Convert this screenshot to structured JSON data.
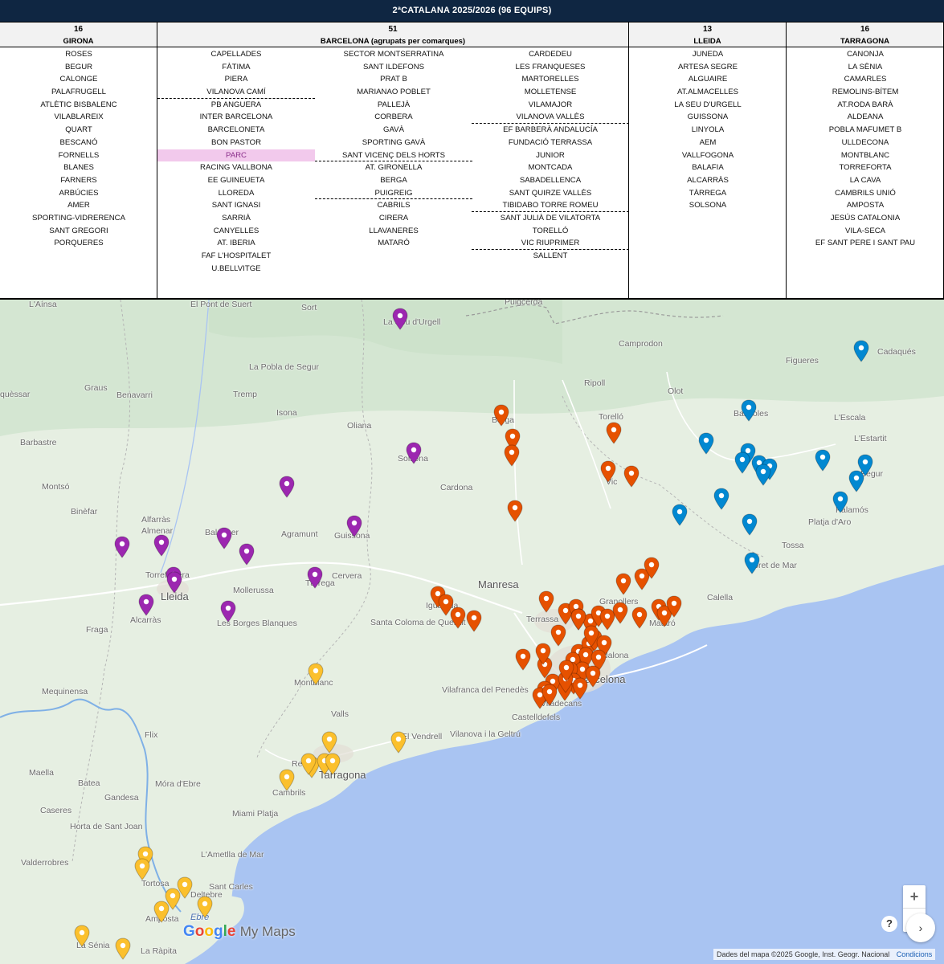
{
  "title": "2ªCATALANA 2025/2026 (96 EQUIPS)",
  "groups": [
    {
      "count": "16",
      "name": "GIRONA",
      "columns": [
        [
          "ROSES",
          "BEGUR",
          "CALONGE",
          "PALAFRUGELL",
          "ATLÈTIC BISBALENC",
          "VILABLAREIX",
          "QUART",
          "BESCANÓ",
          "FORNELLS",
          "BLANES",
          "FARNERS",
          "ARBÚCIES",
          "AMER",
          "SPORTING-VIDRERENCA",
          "SANT GREGORI",
          "PORQUERES"
        ]
      ]
    },
    {
      "count": "51",
      "name": "BARCELONA (agrupats per comarques)",
      "columns": [
        [
          "CAPELLADES",
          "FÀTIMA",
          "PIERA",
          "VILANOVA CAMÍ",
          "PB ANGUERA",
          "INTER BARCELONA",
          "BARCELONETA",
          "BON PASTOR",
          "PARC",
          "RACING VALLBONA",
          "EE GUINEUETA",
          "LLOREDA",
          "SANT IGNASI",
          "SARRIÀ",
          "CANYELLES",
          "AT. IBERIA",
          "FAF L'HOSPITALET",
          "U.BELLVITGE"
        ],
        [
          "SECTOR MONTSERRATINA",
          "SANT ILDEFONS",
          "PRAT B",
          "MARIANAO POBLET",
          "PALLEJÀ",
          "CORBERA",
          "GAVÀ",
          "SPORTING GAVÀ",
          "SANT VICENÇ DELS HORTS",
          "AT. GIRONELLA",
          "BERGA",
          "PUIGREIG",
          "CABRILS",
          "CIRERA",
          "LLAVANERES",
          "MATARÓ"
        ],
        [
          "CARDEDEU",
          "LES FRANQUESES",
          "MARTORELLES",
          "MOLLETENSE",
          "VILAMAJOR",
          "VILANOVA VALLÈS",
          "EF BARBERÀ ANDALUCÍA",
          "FUNDACIÓ TERRASSA",
          "JUNIOR",
          "MONTCADA",
          "SABADELLENCA",
          "SANT QUIRZE VALLÈS",
          "TIBIDABO TORRE ROMEU",
          "SANT JULIÀ DE VILATORTA",
          "TORELLÓ",
          "VIC RIUPRIMER",
          "SALLENT"
        ]
      ]
    },
    {
      "count": "13",
      "name": "LLEIDA",
      "columns": [
        [
          "JUNEDA",
          "ARTESA SEGRE",
          "ALGUAIRE",
          "AT.ALMACELLES",
          "LA SEU D'URGELL",
          "GUISSONA",
          "LINYOLA",
          "AEM",
          "VALLFOGONA",
          "BALAFIA",
          "ALCARRÀS",
          "TÀRREGA",
          "SOLSONA"
        ]
      ]
    },
    {
      "count": "16",
      "name": "TARRAGONA",
      "columns": [
        [
          "CANONJA",
          "LA SÈNIA",
          "CAMARLES",
          "REMOLINS-BÍTEM",
          "AT.RODA BARÀ",
          "ALDEANA",
          "POBLA MAFUMET B",
          "ULLDECONA",
          "MONTBLANC",
          "TORREFORTA",
          "LA CAVA",
          "CAMBRILS UNIÓ",
          "AMPOSTA",
          "JESÚS CATALONIA",
          "VILA-SECA",
          "EF SANT PERE I SANT PAU"
        ]
      ]
    }
  ],
  "highlighted_team": "PARC",
  "map": {
    "places": [
      "L'Aínsa",
      "El Pont de Suert",
      "Sort",
      "La Seu d'Urgell",
      "Puigcerdà",
      "Camprodon",
      "Cadaqués",
      "Figueres",
      "La Pobla de Segur",
      "Tremp",
      "Isona",
      "Graus",
      "Benavarri",
      "Oliana",
      "Solsona",
      "Berga",
      "Ripoll",
      "Olot",
      "Banyoles",
      "L'Escala",
      "L'Estartit",
      "Begur",
      "Torelló",
      "Vic",
      "Cardona",
      "Barbastre",
      "Montsó",
      "Binèfar",
      "Alfarràs",
      "Almenar",
      "Balaguer",
      "Agramunt",
      "Guissona",
      "Torrefarrera",
      "Lleida",
      "Mollerussa",
      "Tàrrega",
      "Cervera",
      "Manresa",
      "Igualada",
      "Alcarràs",
      "Fraga",
      "Les Borges Blanques",
      "Santa Coloma de Queralt",
      "Terrassa",
      "Granollers",
      "Mataró",
      "Calella",
      "Lloret de Mar",
      "Platja d'Aro",
      "Palamós",
      "Barcelona",
      "Badalona",
      "Viladecans",
      "Castelldefels",
      "Vilafranca del Penedès",
      "Vilanova i la Geltrú",
      "El Vendrell",
      "Montblanc",
      "Valls",
      "Reus",
      "Tarragona",
      "Cambrils",
      "Mequinensa",
      "Flix",
      "Maella",
      "Batea",
      "Gandesa",
      "Móra d'Ebre",
      "Caseres",
      "Horta de Sant Joan",
      "Miami Platja",
      "L'Ametlla de Mar",
      "Valderrobres",
      "Tortosa",
      "Amposta",
      "Deltebre",
      "La Sénia",
      "La Ràpita",
      "Ebre",
      "Sant Carles",
      "Tossa",
      "quèssar"
    ],
    "legend_colors": {
      "lleida": "#9c27b0",
      "barcelona": "#e65100",
      "girona": "#0288d1",
      "tarragona": "#fbc02d"
    },
    "controls": {
      "zoom_in": "+",
      "zoom_out": "−",
      "help": "?",
      "expand": "›"
    },
    "logo": {
      "google": "Google",
      "mymaps": "My Maps"
    },
    "attribution": "Dades del mapa ©2025 Google, Inst. Geogr. Nacional",
    "terms": "Condicions"
  }
}
